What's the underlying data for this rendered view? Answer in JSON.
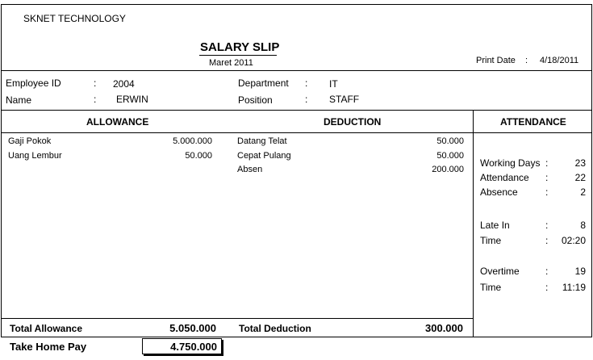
{
  "company": "SKNET TECHNOLOGY",
  "title": "SALARY SLIP",
  "period": "Maret 2011",
  "print_date": {
    "label": "Print Date",
    "colon": ":",
    "value": "4/18/2011"
  },
  "employee": {
    "id_label": "Employee ID",
    "id_colon": ":",
    "id_value": "2004",
    "name_label": "Name",
    "name_colon": ":",
    "name_value": "ERWIN",
    "dept_label": "Department",
    "dept_colon": ":",
    "dept_value": "IT",
    "pos_label": "Position",
    "pos_colon": ":",
    "pos_value": "STAFF"
  },
  "headers": {
    "allowance": "ALLOWANCE",
    "deduction": "DEDUCTION",
    "attendance": "ATTENDANCE"
  },
  "allowance": [
    {
      "label": "Gaji Pokok",
      "value": "5.000.000"
    },
    {
      "label": "Uang Lembur",
      "value": "50.000"
    }
  ],
  "deduction": [
    {
      "label": "Datang Telat",
      "value": "50.000"
    },
    {
      "label": "Cepat Pulang",
      "value": "50.000"
    },
    {
      "label": "Absen",
      "value": "200.000"
    }
  ],
  "attendance": [
    {
      "label": "Working Days",
      "colon": ":",
      "value": "23"
    },
    {
      "label": "Attendance",
      "colon": ":",
      "value": "22"
    },
    {
      "label": "Absence",
      "colon": ":",
      "value": "2"
    },
    {
      "label": "Late In",
      "colon": ":",
      "value": "8"
    },
    {
      "label": "Time",
      "colon": ":",
      "value": "02:20"
    },
    {
      "label": "Overtime",
      "colon": ":",
      "value": "19"
    },
    {
      "label": "Time",
      "colon": ":",
      "value": "11:19"
    }
  ],
  "totals": {
    "allowance_label": "Total Allowance",
    "allowance_value": "5.050.000",
    "deduction_label": "Total Deduction",
    "deduction_value": "300.000"
  },
  "take_home": {
    "label": "Take Home Pay",
    "value": "4.750.000"
  }
}
